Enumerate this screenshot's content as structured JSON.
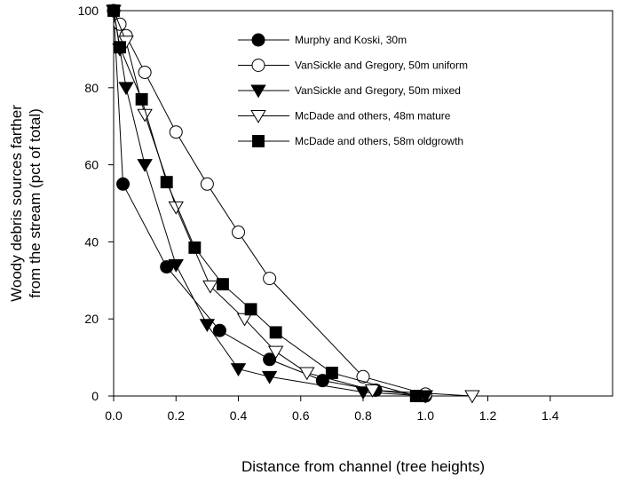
{
  "chart_data": {
    "type": "line",
    "xlabel": "Distance from channel (tree heights)",
    "ylabel_lines": [
      "Woody debris sources farther",
      "from the stream (pct of total)"
    ],
    "xlim": [
      0,
      1.6
    ],
    "ylim": [
      0,
      100
    ],
    "x_ticks": [
      0.0,
      0.2,
      0.4,
      0.6,
      0.8,
      1.0,
      1.2,
      1.4
    ],
    "x_tick_labels": [
      "0.0",
      "0.2",
      "0.4",
      "0.6",
      "0.8",
      "1.0",
      "1.2",
      "1.4"
    ],
    "y_ticks": [
      0,
      20,
      40,
      60,
      80,
      100
    ],
    "y_tick_labels": [
      "0",
      "20",
      "40",
      "60",
      "80",
      "100"
    ],
    "legend_position": "top-right",
    "series": [
      {
        "name": "Murphy and Koski, 30m",
        "marker": "circle",
        "filled": true,
        "points": [
          [
            0.0,
            100
          ],
          [
            0.03,
            55
          ],
          [
            0.17,
            33.5
          ],
          [
            0.34,
            17
          ],
          [
            0.5,
            9.5
          ],
          [
            0.67,
            4
          ],
          [
            0.84,
            1.5
          ],
          [
            1.0,
            0
          ]
        ]
      },
      {
        "name": "VanSickle and Gregory, 50m uniform",
        "marker": "circle",
        "filled": false,
        "points": [
          [
            0.0,
            100
          ],
          [
            0.02,
            96.5
          ],
          [
            0.04,
            93.5
          ],
          [
            0.1,
            84
          ],
          [
            0.2,
            68.5
          ],
          [
            0.3,
            55
          ],
          [
            0.4,
            42.5
          ],
          [
            0.5,
            30.5
          ],
          [
            0.8,
            5
          ],
          [
            1.0,
            0.5
          ]
        ]
      },
      {
        "name": "VanSickle and Gregory, 50m mixed",
        "marker": "triangle-down",
        "filled": true,
        "points": [
          [
            0.0,
            100
          ],
          [
            0.02,
            90
          ],
          [
            0.04,
            80
          ],
          [
            0.1,
            60
          ],
          [
            0.2,
            34
          ],
          [
            0.3,
            18.5
          ],
          [
            0.4,
            7
          ],
          [
            0.5,
            5
          ],
          [
            0.8,
            1
          ],
          [
            1.0,
            0
          ]
        ]
      },
      {
        "name": "McDade and others, 48m mature",
        "marker": "triangle-down",
        "filled": false,
        "points": [
          [
            0.0,
            100
          ],
          [
            0.04,
            92
          ],
          [
            0.1,
            73
          ],
          [
            0.2,
            49
          ],
          [
            0.31,
            28.5
          ],
          [
            0.42,
            20
          ],
          [
            0.52,
            11.5
          ],
          [
            0.62,
            6
          ],
          [
            0.83,
            1.5
          ],
          [
            1.15,
            0
          ]
        ]
      },
      {
        "name": "McDade and others, 58m oldgrowth",
        "marker": "square",
        "filled": true,
        "points": [
          [
            0.0,
            100
          ],
          [
            0.02,
            90.5
          ],
          [
            0.09,
            77
          ],
          [
            0.17,
            55.5
          ],
          [
            0.26,
            38.5
          ],
          [
            0.35,
            29
          ],
          [
            0.44,
            22.5
          ],
          [
            0.52,
            16.5
          ],
          [
            0.7,
            6
          ],
          [
            0.97,
            0
          ]
        ]
      }
    ]
  }
}
